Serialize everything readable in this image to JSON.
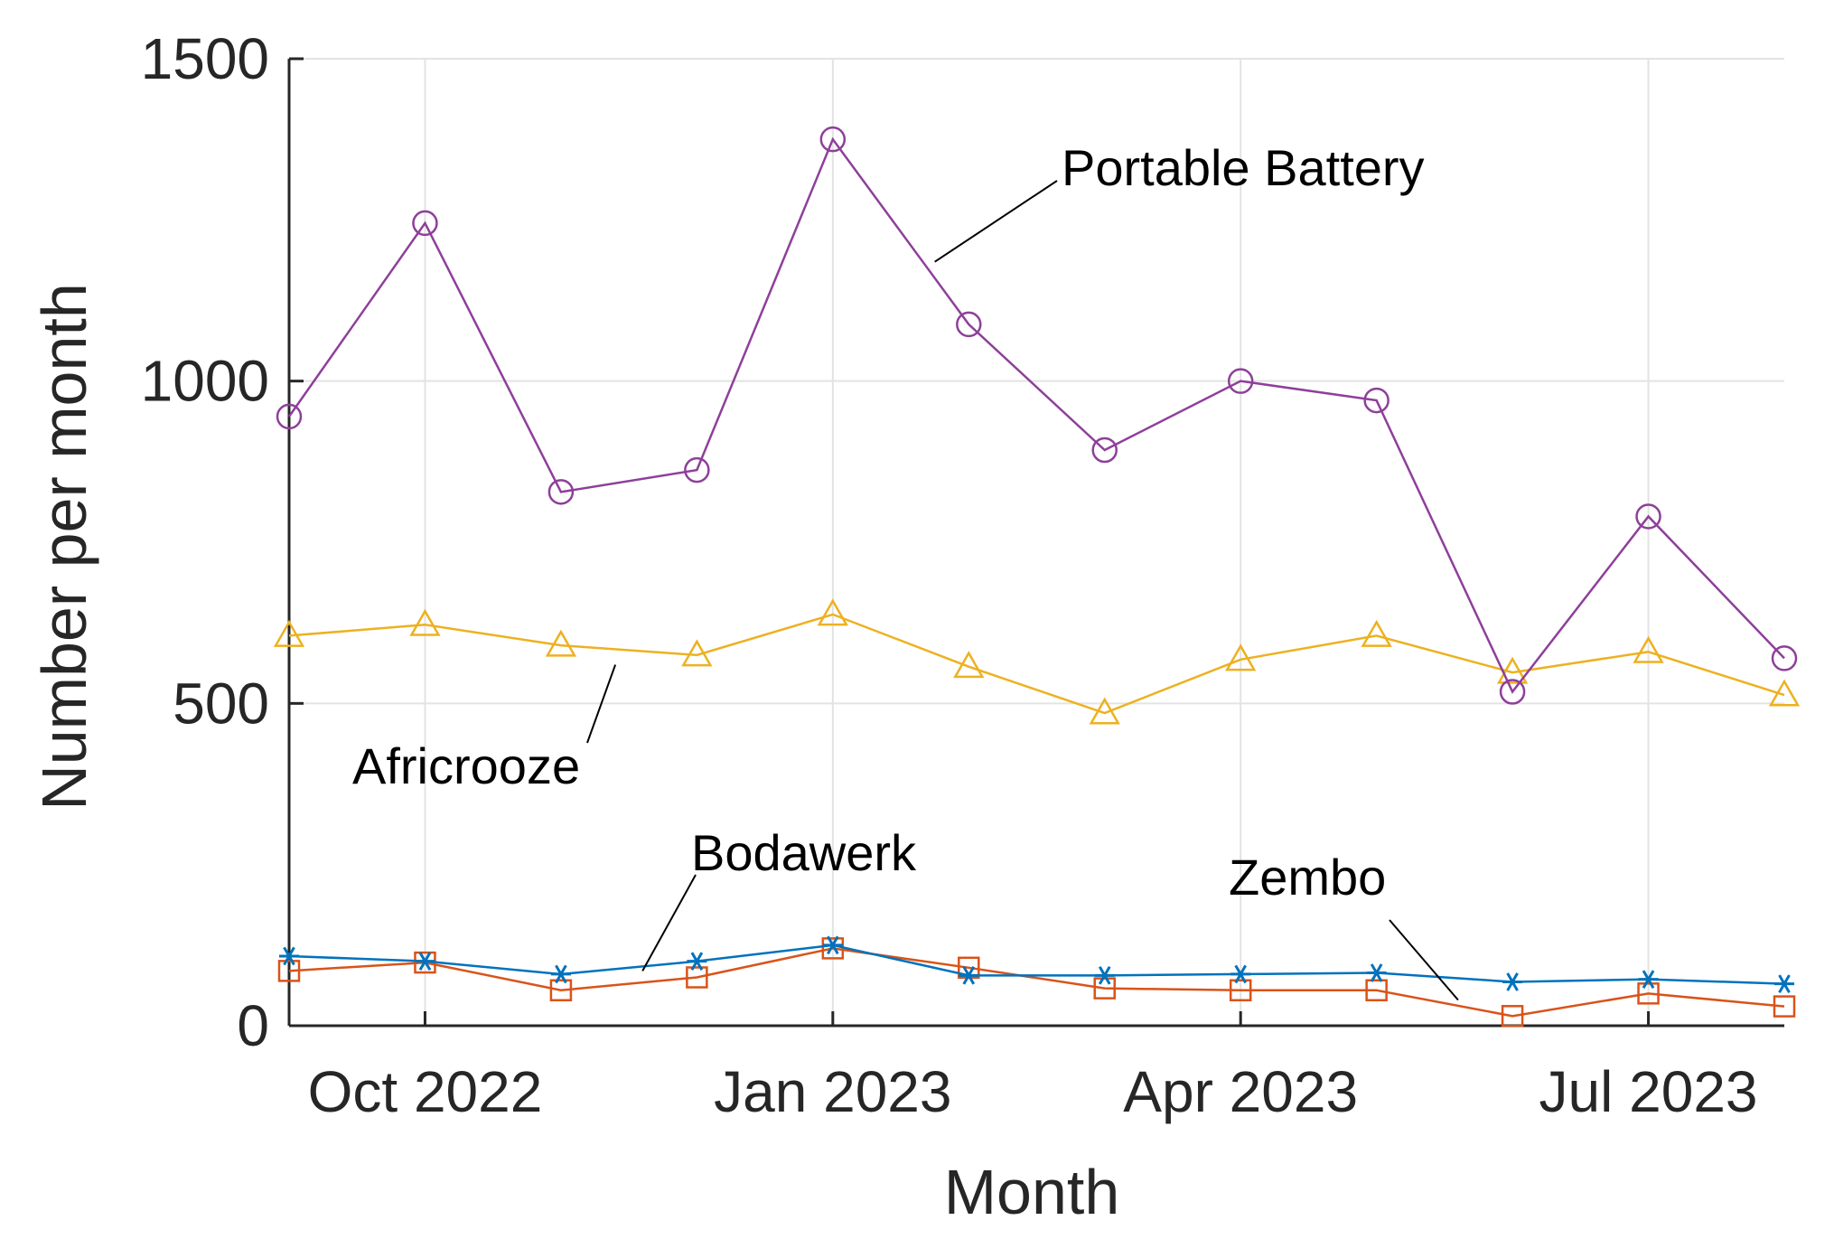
{
  "chart_data": {
    "type": "line",
    "title": "",
    "xlabel": "Month",
    "ylabel": "Number per month",
    "x": [
      "Sep 2022",
      "Oct 2022",
      "Nov 2022",
      "Dec 2022",
      "Jan 2023",
      "Feb 2023",
      "Mar 2023",
      "Apr 2023",
      "May 2023",
      "Jun 2023",
      "Jul 2023",
      "Aug 2023"
    ],
    "ylim": [
      0,
      1500
    ],
    "yticks": [
      0,
      500,
      1000,
      1500
    ],
    "xtick_labels": [
      {
        "month": "Oct 2022",
        "label": "Oct 2022"
      },
      {
        "month": "Jan 2023",
        "label": "Jan 2023"
      },
      {
        "month": "Apr 2023",
        "label": "Apr 2023"
      },
      {
        "month": "Jul 2023",
        "label": "Jul 2023"
      }
    ],
    "grid": true,
    "legend": "none (series labelled by annotations)",
    "series": [
      {
        "name": "Portable Battery",
        "marker": "circle",
        "color": "#8E3F9A",
        "values": [
          945,
          1245,
          828,
          862,
          1375,
          1088,
          893,
          1000,
          970,
          518,
          790,
          570
        ],
        "annotation": {
          "text": "Portable Battery",
          "anchor_index": 4.75,
          "anchor_value": 1185
        }
      },
      {
        "name": "Africrooze",
        "marker": "triangle",
        "color": "#EDB120",
        "values": [
          605,
          622,
          590,
          575,
          638,
          557,
          485,
          568,
          605,
          548,
          580,
          513
        ],
        "annotation": {
          "text": "Africrooze",
          "anchor_index": 2.4,
          "anchor_value": 560
        }
      },
      {
        "name": "Bodawerk",
        "marker": "asterisk",
        "color": "#0072BD",
        "values": [
          108,
          100,
          80,
          100,
          125,
          78,
          78,
          80,
          82,
          68,
          72,
          65
        ],
        "annotation": {
          "text": "Bodawerk",
          "anchor_index": 2.6,
          "anchor_value": 85
        }
      },
      {
        "name": "Zembo",
        "marker": "square",
        "color": "#D95319",
        "values": [
          85,
          98,
          55,
          75,
          120,
          90,
          58,
          55,
          55,
          15,
          50,
          30
        ],
        "annotation": {
          "text": "Zembo",
          "anchor_index": 8.6,
          "anchor_value": 40
        }
      }
    ]
  }
}
